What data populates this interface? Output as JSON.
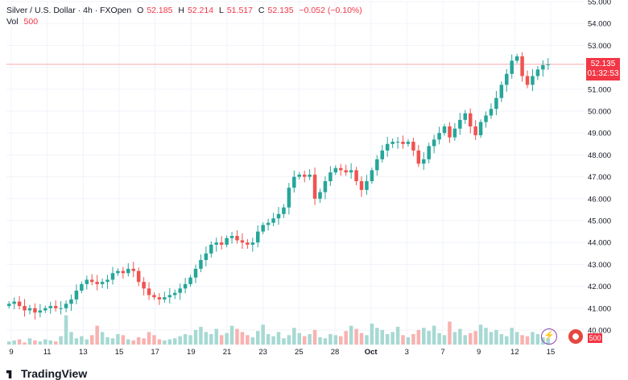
{
  "legend": {
    "symbol": "Silver / U.S. Dollar · 4h · FXOpen",
    "o_label": "O",
    "o_value": "52.185",
    "h_label": "H",
    "h_value": "52.214",
    "l_label": "L",
    "l_value": "51.517",
    "c_label": "C",
    "c_value": "52.135",
    "change": "−0.052 (−0.10%)",
    "vol_label": "Vol",
    "vol_value": "500"
  },
  "price_tag": {
    "price": "52.135",
    "countdown": "01:32:53"
  },
  "vol_tag": "500",
  "brand": "TradingView",
  "colors": {
    "up": "#26a69a",
    "down": "#ef5350",
    "vol_up": "#a7d9d3",
    "vol_down": "#f8b2b0",
    "last_line": "#f7a8ad"
  },
  "chart_data": {
    "type": "candlestick",
    "y_axis": {
      "min": 40.0,
      "max": 55.0,
      "ticks": [
        "55.000",
        "54.000",
        "53.000",
        "52.000",
        "51.000",
        "50.000",
        "49.000",
        "48.000",
        "47.000",
        "46.000",
        "45.000",
        "44.000",
        "43.000",
        "42.000",
        "41.000",
        "40.000"
      ]
    },
    "x_ticks": [
      "9",
      "11",
      "13",
      "15",
      "17",
      "19",
      "21",
      "23",
      "25",
      "28",
      "Oct",
      "3",
      "7",
      "9",
      "12",
      "15"
    ],
    "last_price": 52.135,
    "close_path": [
      41.2,
      41.3,
      41.1,
      40.9,
      41.0,
      40.8,
      40.9,
      41.0,
      41.1,
      41.0,
      41.0,
      41.2,
      41.4,
      41.8,
      42.1,
      42.3,
      42.2,
      42.1,
      42.2,
      42.3,
      42.6,
      42.7,
      42.6,
      42.8,
      42.7,
      42.2,
      41.9,
      41.6,
      41.5,
      41.4,
      41.5,
      41.6,
      41.7,
      41.9,
      42.1,
      42.4,
      42.8,
      43.2,
      43.5,
      43.9,
      44.0,
      43.9,
      44.2,
      44.3,
      44.1,
      44.0,
      43.9,
      44.0,
      44.5,
      44.8,
      44.9,
      45.1,
      45.3,
      45.6,
      46.5,
      47.0,
      47.1,
      47.0,
      47.1,
      46.0,
      46.3,
      46.8,
      47.2,
      47.4,
      47.3,
      47.2,
      47.3,
      46.8,
      46.4,
      46.8,
      47.3,
      47.8,
      48.2,
      48.5,
      48.6,
      48.6,
      48.5,
      48.6,
      48.2,
      47.6,
      47.8,
      48.4,
      48.7,
      49.0,
      49.3,
      48.8,
      49.2,
      49.6,
      49.9,
      49.3,
      48.9,
      49.5,
      49.8,
      50.1,
      50.6,
      51.2,
      51.7,
      52.3,
      52.5,
      51.6,
      51.2,
      51.6,
      51.9,
      52.1,
      52.135
    ],
    "volume_heights": [
      3,
      4,
      5,
      2,
      6,
      4,
      3,
      5,
      4,
      3,
      8,
      28,
      12,
      6,
      8,
      5,
      9,
      18,
      12,
      7,
      6,
      10,
      9,
      5,
      4,
      7,
      6,
      12,
      9,
      5,
      4,
      5,
      6,
      8,
      10,
      9,
      14,
      17,
      12,
      10,
      15,
      9,
      11,
      18,
      15,
      12,
      9,
      7,
      13,
      19,
      10,
      8,
      12,
      6,
      9,
      16,
      11,
      8,
      10,
      14,
      7,
      6,
      10,
      9,
      8,
      13,
      18,
      15,
      11,
      9,
      20,
      16,
      14,
      10,
      12,
      17,
      9,
      7,
      10,
      14,
      16,
      13,
      18,
      11,
      9,
      22,
      12,
      15,
      9,
      11,
      13,
      19,
      16,
      12,
      14,
      10,
      8,
      16,
      12,
      9,
      8,
      12,
      10,
      7,
      6
    ]
  }
}
